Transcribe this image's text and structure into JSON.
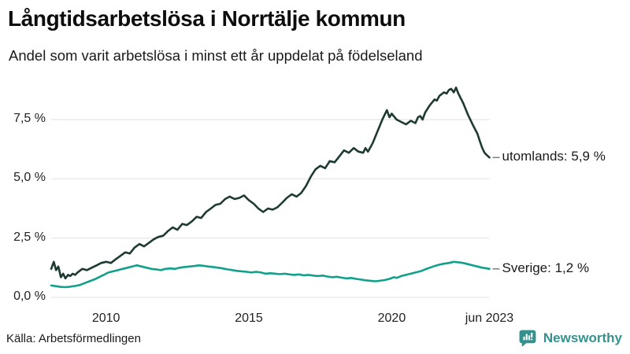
{
  "header": {
    "title": "Långtidsarbetslösa i Norrtälje kommun",
    "subtitle": "Andel som varit arbetslösa i minst ett år uppdelat på födelseland"
  },
  "footer": {
    "source": "Källa: Arbetsförmedlingen",
    "brand": {
      "name": "Newsworthy",
      "color": "#35918e",
      "logo_icon": "speech-bubble-bar-chart-icon"
    }
  },
  "chart_data": {
    "type": "line",
    "title": "Långtidsarbetslösa i Norrtälje kommun",
    "subtitle": "Andel som varit arbetslösa i minst ett år uppdelat på födelseland",
    "x_range": [
      2008.08,
      2023.42
    ],
    "ylim": [
      0,
      9.2
    ],
    "grid": "horizontal",
    "legend_position": "end-of-line-labels",
    "colors": {
      "gridline": "#ececec",
      "leader": "#777777"
    },
    "y_ticks": [
      {
        "value": 0,
        "label": "0,0 %"
      },
      {
        "value": 2.5,
        "label": "2,5 %"
      },
      {
        "value": 5,
        "label": "5,0 %"
      },
      {
        "value": 7.5,
        "label": "7,5 %"
      }
    ],
    "x_ticks": [
      {
        "year": 2010,
        "label": "2010"
      },
      {
        "year": 2015,
        "label": "2015"
      },
      {
        "year": 2020,
        "label": "2020"
      },
      {
        "year": 2023.42,
        "label": "jun 2023"
      }
    ],
    "series": [
      {
        "name": "utomlands",
        "end_label": "utomlands: 5,9 %",
        "last_value": 5.9,
        "color": "#1e3a33",
        "points": [
          [
            2008.08,
            1.2
          ],
          [
            2008.17,
            1.5
          ],
          [
            2008.25,
            1.15
          ],
          [
            2008.33,
            1.3
          ],
          [
            2008.42,
            0.85
          ],
          [
            2008.5,
            1.0
          ],
          [
            2008.58,
            0.8
          ],
          [
            2008.67,
            0.95
          ],
          [
            2008.75,
            0.9
          ],
          [
            2008.83,
            1.0
          ],
          [
            2008.92,
            0.95
          ],
          [
            2009.0,
            1.05
          ],
          [
            2009.17,
            1.2
          ],
          [
            2009.33,
            1.15
          ],
          [
            2009.5,
            1.25
          ],
          [
            2009.67,
            1.35
          ],
          [
            2009.83,
            1.45
          ],
          [
            2010.0,
            1.5
          ],
          [
            2010.17,
            1.45
          ],
          [
            2010.33,
            1.6
          ],
          [
            2010.5,
            1.75
          ],
          [
            2010.67,
            1.9
          ],
          [
            2010.83,
            1.85
          ],
          [
            2011.0,
            2.1
          ],
          [
            2011.17,
            2.25
          ],
          [
            2011.33,
            2.15
          ],
          [
            2011.5,
            2.3
          ],
          [
            2011.67,
            2.45
          ],
          [
            2011.83,
            2.55
          ],
          [
            2012.0,
            2.6
          ],
          [
            2012.17,
            2.8
          ],
          [
            2012.33,
            2.95
          ],
          [
            2012.5,
            2.85
          ],
          [
            2012.67,
            3.1
          ],
          [
            2012.83,
            3.05
          ],
          [
            2013.0,
            3.2
          ],
          [
            2013.17,
            3.4
          ],
          [
            2013.33,
            3.35
          ],
          [
            2013.5,
            3.6
          ],
          [
            2013.67,
            3.75
          ],
          [
            2013.83,
            3.9
          ],
          [
            2014.0,
            3.95
          ],
          [
            2014.17,
            4.15
          ],
          [
            2014.33,
            4.25
          ],
          [
            2014.5,
            4.15
          ],
          [
            2014.67,
            4.2
          ],
          [
            2014.83,
            4.3
          ],
          [
            2015.0,
            4.1
          ],
          [
            2015.17,
            3.95
          ],
          [
            2015.33,
            3.75
          ],
          [
            2015.5,
            3.6
          ],
          [
            2015.67,
            3.75
          ],
          [
            2015.83,
            3.7
          ],
          [
            2016.0,
            3.8
          ],
          [
            2016.17,
            4.0
          ],
          [
            2016.33,
            4.2
          ],
          [
            2016.5,
            4.35
          ],
          [
            2016.67,
            4.25
          ],
          [
            2016.83,
            4.4
          ],
          [
            2017.0,
            4.7
          ],
          [
            2017.17,
            5.1
          ],
          [
            2017.33,
            5.4
          ],
          [
            2017.5,
            5.55
          ],
          [
            2017.67,
            5.45
          ],
          [
            2017.83,
            5.75
          ],
          [
            2018.0,
            5.7
          ],
          [
            2018.17,
            5.95
          ],
          [
            2018.33,
            6.2
          ],
          [
            2018.5,
            6.1
          ],
          [
            2018.67,
            6.3
          ],
          [
            2018.83,
            6.15
          ],
          [
            2019.0,
            6.1
          ],
          [
            2019.08,
            6.3
          ],
          [
            2019.17,
            6.15
          ],
          [
            2019.33,
            6.5
          ],
          [
            2019.5,
            7.0
          ],
          [
            2019.67,
            7.5
          ],
          [
            2019.83,
            7.9
          ],
          [
            2019.92,
            7.6
          ],
          [
            2020.0,
            7.75
          ],
          [
            2020.17,
            7.5
          ],
          [
            2020.33,
            7.4
          ],
          [
            2020.5,
            7.3
          ],
          [
            2020.67,
            7.45
          ],
          [
            2020.83,
            7.35
          ],
          [
            2020.92,
            7.6
          ],
          [
            2021.0,
            7.65
          ],
          [
            2021.08,
            7.5
          ],
          [
            2021.17,
            7.8
          ],
          [
            2021.33,
            8.1
          ],
          [
            2021.5,
            8.35
          ],
          [
            2021.58,
            8.3
          ],
          [
            2021.67,
            8.5
          ],
          [
            2021.83,
            8.65
          ],
          [
            2021.92,
            8.6
          ],
          [
            2022.0,
            8.75
          ],
          [
            2022.08,
            8.8
          ],
          [
            2022.17,
            8.65
          ],
          [
            2022.25,
            8.85
          ],
          [
            2022.33,
            8.6
          ],
          [
            2022.5,
            8.2
          ],
          [
            2022.67,
            7.7
          ],
          [
            2022.83,
            7.3
          ],
          [
            2023.0,
            6.9
          ],
          [
            2023.08,
            6.6
          ],
          [
            2023.17,
            6.3
          ],
          [
            2023.25,
            6.1
          ],
          [
            2023.33,
            6.0
          ],
          [
            2023.42,
            5.9
          ]
        ]
      },
      {
        "name": "Sverige",
        "end_label": "Sverige: 1,2 %",
        "last_value": 1.2,
        "color": "#11a08a",
        "points": [
          [
            2008.08,
            0.5
          ],
          [
            2008.25,
            0.47
          ],
          [
            2008.42,
            0.44
          ],
          [
            2008.58,
            0.43
          ],
          [
            2008.75,
            0.45
          ],
          [
            2008.92,
            0.48
          ],
          [
            2009.08,
            0.52
          ],
          [
            2009.25,
            0.6
          ],
          [
            2009.42,
            0.68
          ],
          [
            2009.58,
            0.75
          ],
          [
            2009.75,
            0.85
          ],
          [
            2009.92,
            0.95
          ],
          [
            2010.08,
            1.05
          ],
          [
            2010.25,
            1.1
          ],
          [
            2010.42,
            1.15
          ],
          [
            2010.58,
            1.2
          ],
          [
            2010.75,
            1.25
          ],
          [
            2010.92,
            1.3
          ],
          [
            2011.08,
            1.35
          ],
          [
            2011.25,
            1.3
          ],
          [
            2011.42,
            1.25
          ],
          [
            2011.58,
            1.2
          ],
          [
            2011.75,
            1.18
          ],
          [
            2011.92,
            1.15
          ],
          [
            2012.08,
            1.2
          ],
          [
            2012.25,
            1.22
          ],
          [
            2012.42,
            1.2
          ],
          [
            2012.58,
            1.25
          ],
          [
            2012.75,
            1.28
          ],
          [
            2012.92,
            1.3
          ],
          [
            2013.08,
            1.32
          ],
          [
            2013.25,
            1.35
          ],
          [
            2013.42,
            1.33
          ],
          [
            2013.58,
            1.3
          ],
          [
            2013.75,
            1.28
          ],
          [
            2013.92,
            1.25
          ],
          [
            2014.08,
            1.22
          ],
          [
            2014.25,
            1.18
          ],
          [
            2014.42,
            1.15
          ],
          [
            2014.58,
            1.12
          ],
          [
            2014.75,
            1.1
          ],
          [
            2014.92,
            1.08
          ],
          [
            2015.08,
            1.05
          ],
          [
            2015.25,
            1.08
          ],
          [
            2015.42,
            1.05
          ],
          [
            2015.58,
            1.0
          ],
          [
            2015.75,
            1.02
          ],
          [
            2015.92,
            1.0
          ],
          [
            2016.08,
            0.98
          ],
          [
            2016.25,
            1.0
          ],
          [
            2016.42,
            0.97
          ],
          [
            2016.58,
            0.95
          ],
          [
            2016.75,
            0.97
          ],
          [
            2016.92,
            0.93
          ],
          [
            2017.08,
            0.95
          ],
          [
            2017.25,
            0.92
          ],
          [
            2017.42,
            0.9
          ],
          [
            2017.58,
            0.92
          ],
          [
            2017.75,
            0.88
          ],
          [
            2017.92,
            0.85
          ],
          [
            2018.08,
            0.87
          ],
          [
            2018.25,
            0.83
          ],
          [
            2018.42,
            0.8
          ],
          [
            2018.58,
            0.82
          ],
          [
            2018.75,
            0.78
          ],
          [
            2018.92,
            0.75
          ],
          [
            2019.08,
            0.72
          ],
          [
            2019.25,
            0.7
          ],
          [
            2019.42,
            0.68
          ],
          [
            2019.58,
            0.7
          ],
          [
            2019.75,
            0.73
          ],
          [
            2019.92,
            0.78
          ],
          [
            2020.08,
            0.85
          ],
          [
            2020.17,
            0.82
          ],
          [
            2020.33,
            0.9
          ],
          [
            2020.5,
            0.95
          ],
          [
            2020.67,
            1.0
          ],
          [
            2020.83,
            1.05
          ],
          [
            2021.0,
            1.1
          ],
          [
            2021.17,
            1.18
          ],
          [
            2021.33,
            1.25
          ],
          [
            2021.5,
            1.32
          ],
          [
            2021.67,
            1.38
          ],
          [
            2021.83,
            1.42
          ],
          [
            2022.0,
            1.45
          ],
          [
            2022.17,
            1.5
          ],
          [
            2022.33,
            1.48
          ],
          [
            2022.5,
            1.45
          ],
          [
            2022.67,
            1.4
          ],
          [
            2022.83,
            1.35
          ],
          [
            2023.0,
            1.3
          ],
          [
            2023.17,
            1.25
          ],
          [
            2023.33,
            1.22
          ],
          [
            2023.42,
            1.2
          ]
        ]
      }
    ]
  }
}
